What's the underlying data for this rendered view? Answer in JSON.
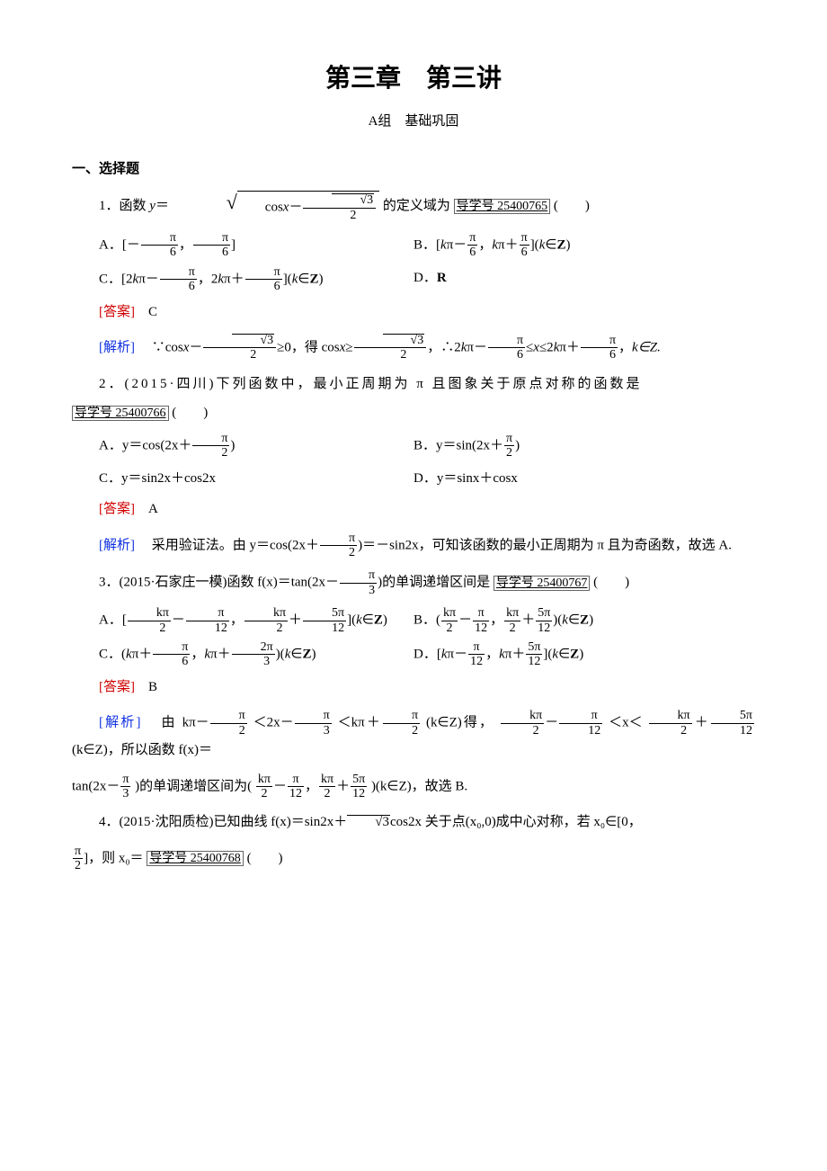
{
  "title": "第三章　第三讲",
  "subtitle": "A组　基础巩固",
  "section_head": "一、选择题",
  "q1": {
    "stem_prefix": "1．函数 ",
    "stem_suffix": "的定义域为",
    "link": "导学号 25400765",
    "paren": "(　　)",
    "optA_label": "A．",
    "optB_label": "B．",
    "optC_label": "C．",
    "optD_label": "D．",
    "optD_text": "R",
    "ans_label": "[答案]",
    "ans": "　C",
    "exp_label": "[解析]",
    "exp_tail": "k∈Z."
  },
  "q2": {
    "stem": "2．(2015·四川)下列函数中，最小正周期为 π 且图象关于原点对称的函数是",
    "link": "导学号 25400766",
    "paren": "(　　)",
    "optA": "A．y＝cos(2x＋",
    "optA_tail": ")",
    "optB": "B．y＝sin(2x＋",
    "optB_tail": ")",
    "optC": "C．y＝sin2x＋cos2x",
    "optD": "D．y＝sinx＋cosx",
    "ans_label": "[答案]",
    "ans": "　A",
    "exp_label": "[解析]",
    "exp_text1": "　采用验证法。由 y＝cos(2x＋",
    "exp_text2": ")＝－sin2x，可知该函数的最小正周期为 π 且为奇函数，故选 A."
  },
  "q3": {
    "stem1": "3．(2015·石家庄一模)函数 f(x)＝tan(2x－",
    "stem2": ")的单调递增区间是",
    "link": "导学号 25400767",
    "paren": "(　　)",
    "optA": "A．[",
    "optB": "B．(",
    "optC": "C．(",
    "optD": "D．[",
    "ans_label": "[答案]",
    "ans": "　B",
    "exp_label": "[解析]",
    "exp_t1": "　由 kπ－",
    "exp_t2": "＜2x－",
    "exp_t3": "＜kπ＋",
    "exp_t4": "(k∈Z)得，",
    "exp_t5": "＜x＜",
    "exp_t6": "(k∈Z)，所以函数 f(x)＝",
    "exp_t7": "tan(2x－",
    "exp_t8": ")的单调递增区间为(",
    "exp_t9": ")(k∈Z)，故选 B."
  },
  "q4": {
    "stem1": "4．(2015·沈阳质检)已知曲线 f(x)＝sin2x＋",
    "stem2": "cos2x 关于点(x₀,0)成中心对称，若 x₀∈[0，",
    "stem3": "]，则 x₀＝",
    "link": "导学号 25400768",
    "paren": "(　　)"
  },
  "frac": {
    "pi": "π",
    "two": "2",
    "three": "3",
    "six": "6",
    "twelve": "12",
    "kpi": "kπ",
    "fivepi": "5π",
    "twopi": "2π",
    "sqrt3": "3"
  }
}
